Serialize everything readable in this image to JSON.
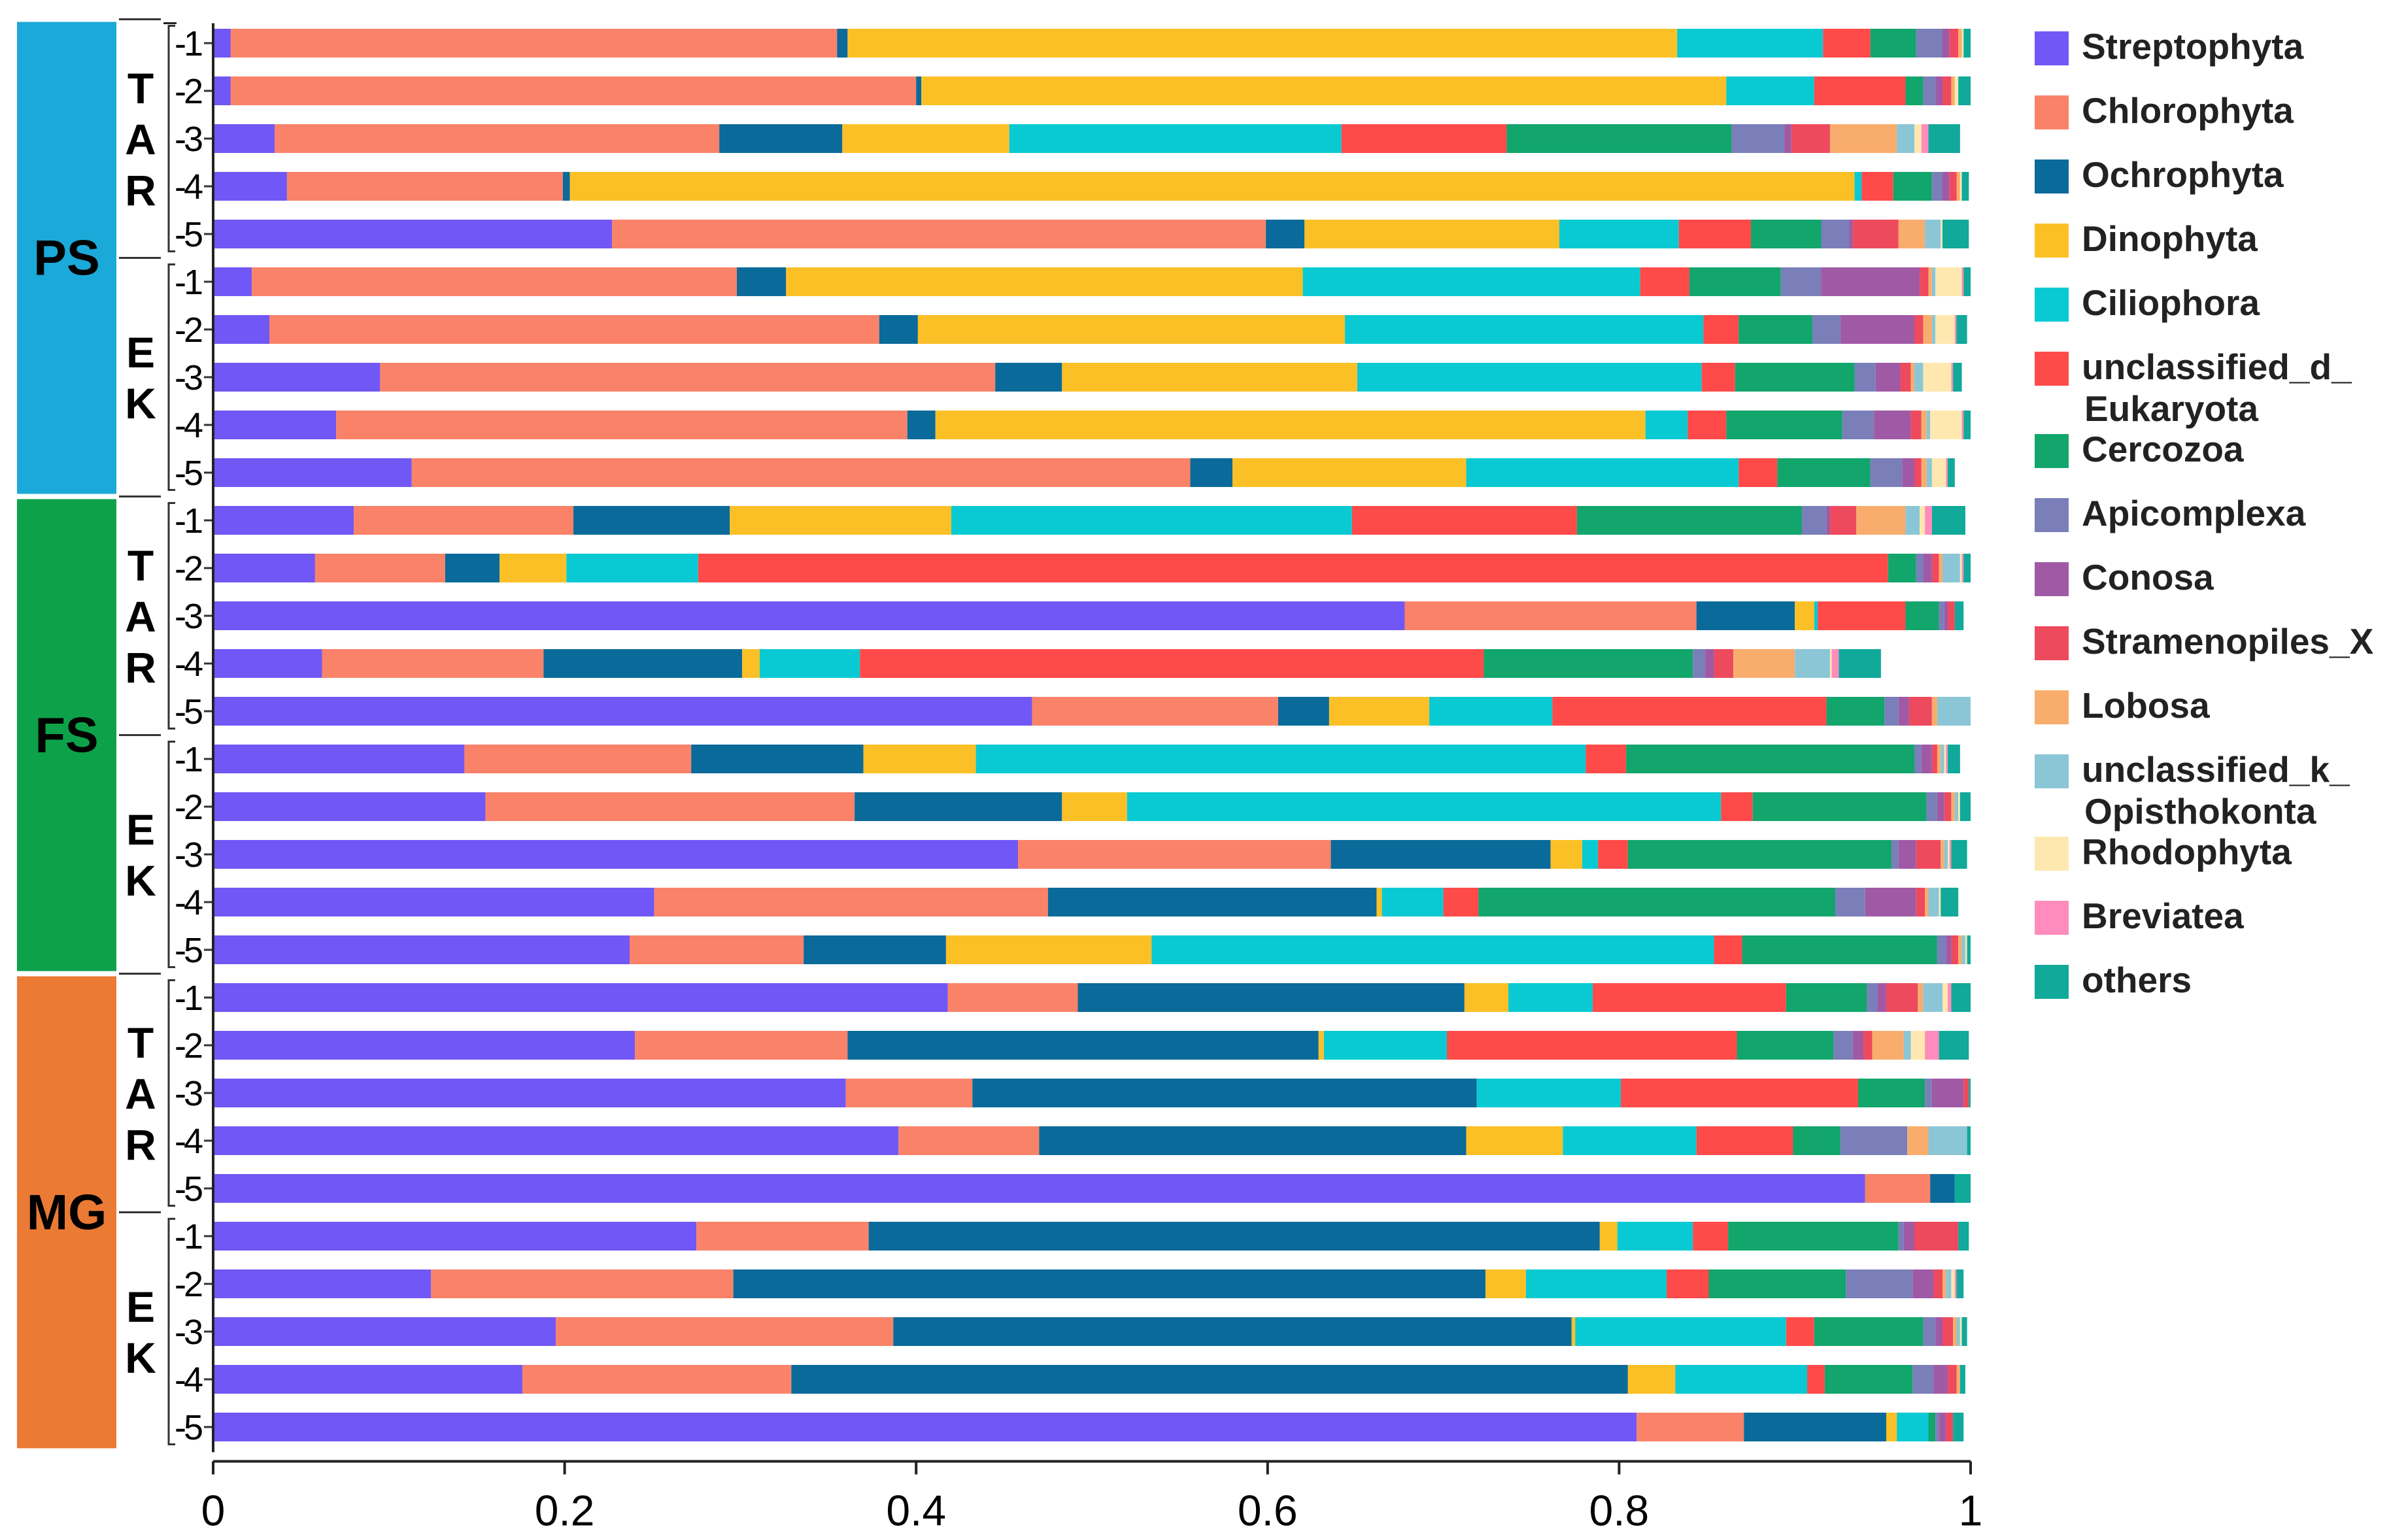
{
  "chart_data": {
    "type": "bar",
    "orientation": "horizontal",
    "stacked": true,
    "xlim": [
      0,
      1
    ],
    "x_ticks": [
      "0",
      "0.2",
      "0.4",
      "0.6",
      "0.8",
      "1"
    ],
    "groups": [
      {
        "label": "PS",
        "color": "#1BA9D9",
        "subgroups": [
          {
            "label": "TAR",
            "samples": [
              "1",
              "2",
              "3",
              "4",
              "5"
            ]
          },
          {
            "label": "EK",
            "samples": [
              "1",
              "2",
              "3",
              "4",
              "5"
            ]
          }
        ]
      },
      {
        "label": "FS",
        "color": "#0DA24A",
        "subgroups": [
          {
            "label": "TAR",
            "samples": [
              "1",
              "2",
              "3",
              "4",
              "5"
            ]
          },
          {
            "label": "EK",
            "samples": [
              "1",
              "2",
              "3",
              "4",
              "5"
            ]
          }
        ]
      },
      {
        "label": "MG",
        "color": "#EB7A35",
        "subgroups": [
          {
            "label": "TAR",
            "samples": [
              "1",
              "2",
              "3",
              "4",
              "5"
            ]
          },
          {
            "label": "EK",
            "samples": [
              "1",
              "2",
              "3",
              "4",
              "5"
            ]
          }
        ]
      }
    ],
    "series": [
      {
        "name": "Streptophyta",
        "legend": [
          "Streptophyta"
        ],
        "color": "#7157F5",
        "values": [
          0.01,
          0.01,
          0.035,
          0.042,
          0.227,
          0.022,
          0.032,
          0.095,
          0.07,
          0.113,
          0.08,
          0.058,
          0.678,
          0.062,
          0.466,
          0.143,
          0.155,
          0.458,
          0.251,
          0.237,
          0.418,
          0.24,
          0.36,
          0.39,
          0.94,
          0.275,
          0.124,
          0.195,
          0.176,
          0.81
        ]
      },
      {
        "name": "Chlorophyta",
        "legend": [
          "Chlorophyta"
        ],
        "color": "#FA8269",
        "values": [
          0.345,
          0.39,
          0.253,
          0.157,
          0.372,
          0.276,
          0.347,
          0.35,
          0.325,
          0.443,
          0.125,
          0.074,
          0.166,
          0.126,
          0.14,
          0.129,
          0.21,
          0.178,
          0.224,
          0.099,
          0.074,
          0.121,
          0.072,
          0.08,
          0.037,
          0.098,
          0.172,
          0.192,
          0.153,
          0.061
        ]
      },
      {
        "name": "Ochrophyta",
        "legend": [
          "Ochrophyta"
        ],
        "color": "#0A6A9A",
        "values": [
          0.006,
          0.003,
          0.07,
          0.004,
          0.022,
          0.028,
          0.022,
          0.038,
          0.016,
          0.024,
          0.089,
          0.031,
          0.056,
          0.113,
          0.029,
          0.098,
          0.118,
          0.125,
          0.187,
          0.081,
          0.22,
          0.268,
          0.287,
          0.243,
          0.014,
          0.416,
          0.428,
          0.386,
          0.476,
          0.081
        ]
      },
      {
        "name": "Dinophyta",
        "legend": [
          "Dinophyta"
        ],
        "color": "#FCC027",
        "values": [
          0.472,
          0.458,
          0.095,
          0.731,
          0.145,
          0.294,
          0.243,
          0.168,
          0.404,
          0.133,
          0.126,
          0.038,
          0.011,
          0.01,
          0.057,
          0.064,
          0.037,
          0.018,
          0.003,
          0.117,
          0.025,
          0.003,
          0.0,
          0.055,
          0.0,
          0.01,
          0.023,
          0.002,
          0.027,
          0.006
        ]
      },
      {
        "name": "Ciliophora",
        "legend": [
          "Ciliophora"
        ],
        "color": "#09CAD3",
        "values": [
          0.083,
          0.05,
          0.189,
          0.004,
          0.068,
          0.192,
          0.204,
          0.196,
          0.024,
          0.155,
          0.228,
          0.075,
          0.002,
          0.057,
          0.07,
          0.347,
          0.338,
          0.009,
          0.035,
          0.32,
          0.048,
          0.07,
          0.082,
          0.076,
          0.0,
          0.043,
          0.08,
          0.12,
          0.075,
          0.018
        ]
      },
      {
        "name": "unclassified_d_Eukaryota",
        "legend": [
          "unclassified_d_",
          "Eukaryota"
        ],
        "color": "#FF4A4A",
        "values": [
          0.027,
          0.052,
          0.094,
          0.018,
          0.041,
          0.028,
          0.02,
          0.019,
          0.022,
          0.022,
          0.128,
          0.677,
          0.05,
          0.355,
          0.156,
          0.023,
          0.018,
          0.017,
          0.02,
          0.016,
          0.11,
          0.165,
          0.135,
          0.055,
          0.0,
          0.02,
          0.024,
          0.016,
          0.01,
          0.0
        ]
      },
      {
        "name": "Cercozoa",
        "legend": [
          "Cercozoa"
        ],
        "color": "#12A56C",
        "values": [
          0.026,
          0.01,
          0.128,
          0.022,
          0.04,
          0.052,
          0.042,
          0.068,
          0.066,
          0.053,
          0.128,
          0.016,
          0.019,
          0.119,
          0.033,
          0.164,
          0.099,
          0.15,
          0.203,
          0.111,
          0.046,
          0.055,
          0.038,
          0.027,
          0.0,
          0.097,
          0.078,
          0.062,
          0.05,
          0.004
        ]
      },
      {
        "name": "Apicomplexa",
        "legend": [
          "Apicomplexa"
        ],
        "color": "#7A7FB9",
        "values": [
          0.015,
          0.007,
          0.03,
          0.006,
          0.016,
          0.023,
          0.016,
          0.012,
          0.018,
          0.018,
          0.014,
          0.004,
          0.003,
          0.007,
          0.008,
          0.004,
          0.006,
          0.004,
          0.017,
          0.005,
          0.006,
          0.011,
          0.004,
          0.038,
          0.0,
          0.003,
          0.038,
          0.007,
          0.012,
          0.002
        ]
      },
      {
        "name": "Conosa",
        "legend": [
          "Conosa"
        ],
        "color": "#A05AA5",
        "values": [
          0.004,
          0.004,
          0.004,
          0.004,
          0.002,
          0.056,
          0.042,
          0.014,
          0.021,
          0.007,
          0.002,
          0.005,
          0.002,
          0.005,
          0.006,
          0.006,
          0.004,
          0.01,
          0.029,
          0.003,
          0.005,
          0.006,
          0.018,
          0.0,
          0.0,
          0.006,
          0.012,
          0.004,
          0.008,
          0.004
        ]
      },
      {
        "name": "Stramenopiles_X",
        "legend": [
          "Stramenopiles_X"
        ],
        "color": "#EE4A5E",
        "values": [
          0.005,
          0.005,
          0.022,
          0.004,
          0.026,
          0.005,
          0.005,
          0.006,
          0.006,
          0.004,
          0.015,
          0.004,
          0.004,
          0.011,
          0.013,
          0.003,
          0.004,
          0.014,
          0.005,
          0.004,
          0.018,
          0.005,
          0.003,
          0.0,
          0.0,
          0.025,
          0.005,
          0.006,
          0.005,
          0.004
        ]
      },
      {
        "name": "Lobosa",
        "legend": [
          "Lobosa"
        ],
        "color": "#F9AD6C",
        "values": [
          0.002,
          0.002,
          0.038,
          0.002,
          0.015,
          0.002,
          0.005,
          0.002,
          0.003,
          0.003,
          0.028,
          0.002,
          0.0,
          0.035,
          0.003,
          0.002,
          0.002,
          0.002,
          0.002,
          0.002,
          0.003,
          0.018,
          0.0,
          0.012,
          0.0,
          0.0,
          0.002,
          0.002,
          0.002,
          0.0
        ]
      },
      {
        "name": "unclassified_k_Opisthokonta",
        "legend": [
          "unclassified_k_",
          "Opisthokonta"
        ],
        "color": "#8BC6D7",
        "values": [
          0.0,
          0.0,
          0.01,
          0.0,
          0.009,
          0.002,
          0.002,
          0.005,
          0.002,
          0.003,
          0.008,
          0.01,
          0.0,
          0.02,
          0.021,
          0.002,
          0.002,
          0.002,
          0.006,
          0.002,
          0.011,
          0.004,
          0.0,
          0.022,
          0.0,
          0.0,
          0.003,
          0.002,
          0.0,
          0.0
        ]
      },
      {
        "name": "Rhodophyta",
        "legend": [
          "Rhodophyta"
        ],
        "color": "#FFE8B0",
        "values": [
          0.001,
          0.002,
          0.004,
          0.001,
          0.001,
          0.015,
          0.011,
          0.016,
          0.018,
          0.008,
          0.003,
          0.001,
          0.0,
          0.001,
          0.0,
          0.001,
          0.001,
          0.001,
          0.001,
          0.001,
          0.003,
          0.008,
          0.0,
          0.0,
          0.0,
          0.0,
          0.002,
          0.001,
          0.0,
          0.0
        ]
      },
      {
        "name": "Breviatea",
        "legend": [
          "Breviatea"
        ],
        "color": "#FF8CBC",
        "values": [
          0.0,
          0.0,
          0.004,
          0.0,
          0.0,
          0.001,
          0.001,
          0.001,
          0.001,
          0.001,
          0.004,
          0.001,
          0.0,
          0.004,
          0.001,
          0.001,
          0.0,
          0.001,
          0.0,
          0.0,
          0.002,
          0.008,
          0.0,
          0.0,
          0.0,
          0.0,
          0.001,
          0.0,
          0.0,
          0.0
        ]
      },
      {
        "name": "others",
        "legend": [
          "others"
        ],
        "color": "#10A99A",
        "values": [
          0.004,
          0.007,
          0.018,
          0.004,
          0.015,
          0.004,
          0.006,
          0.005,
          0.004,
          0.004,
          0.019,
          0.006,
          0.005,
          0.024,
          0.001,
          0.007,
          0.006,
          0.009,
          0.01,
          0.009,
          0.015,
          0.017,
          0.001,
          0.002,
          0.009,
          0.006,
          0.004,
          0.003,
          0.003,
          0.006
        ]
      }
    ]
  }
}
